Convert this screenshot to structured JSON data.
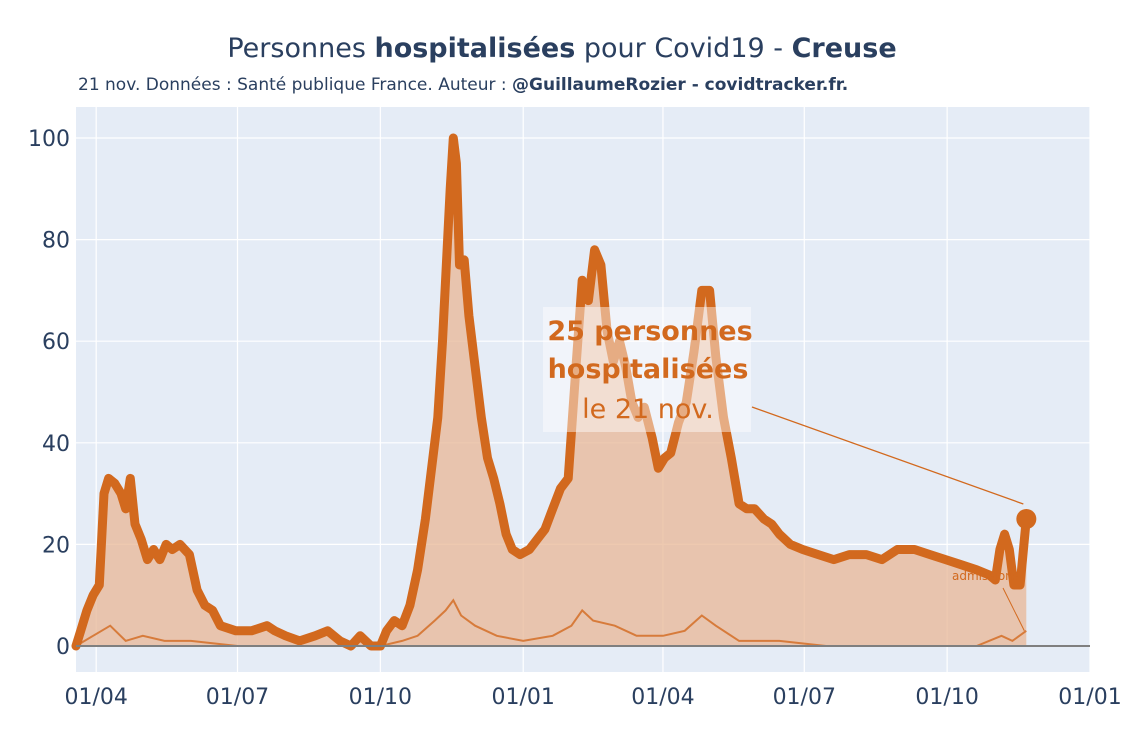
{
  "chart_data": {
    "type": "area",
    "title_prefix": "Personnes ",
    "title_bold1": "hospitalisées",
    "title_mid": " pour Covid19 - ",
    "title_bold2": "Creuse",
    "subtitle_prefix": "21 nov. Données : Santé publique France. Auteur : ",
    "subtitle_bold": "@GuillaumeRozier - covidtracker.fr.",
    "ylim": [
      0,
      100
    ],
    "y_ticks": [
      "0",
      "20",
      "40",
      "60",
      "80",
      "100"
    ],
    "x_ticks": [
      "01/04",
      "01/07",
      "01/10",
      "01/01",
      "01/04",
      "01/07",
      "01/10",
      "01/01"
    ],
    "x_tick_dates": [
      "2020-04-01",
      "2020-07-01",
      "2020-10-01",
      "2021-01-01",
      "2021-04-01",
      "2021-07-01",
      "2021-10-01",
      "2022-01-01"
    ],
    "x_range": [
      "2020-03-19",
      "2022-01-01"
    ],
    "grid": true,
    "colors": {
      "line": "#d2691e",
      "fill": "#e8b796",
      "plot_bg": "#e5ecf6",
      "grid": "#ffffff",
      "text": "#2a3f5f",
      "axis_zero": "#7f7f7f"
    },
    "series": [
      {
        "name": "hospitalisées",
        "points": [
          [
            "2020-03-19",
            0
          ],
          [
            "2020-03-22",
            3
          ],
          [
            "2020-03-26",
            7
          ],
          [
            "2020-03-30",
            10
          ],
          [
            "2020-04-03",
            12
          ],
          [
            "2020-04-06",
            30
          ],
          [
            "2020-04-09",
            33
          ],
          [
            "2020-04-13",
            32
          ],
          [
            "2020-04-17",
            30
          ],
          [
            "2020-04-20",
            27
          ],
          [
            "2020-04-23",
            33
          ],
          [
            "2020-04-26",
            24
          ],
          [
            "2020-04-30",
            21
          ],
          [
            "2020-05-04",
            17
          ],
          [
            "2020-05-08",
            19
          ],
          [
            "2020-05-12",
            17
          ],
          [
            "2020-05-16",
            20
          ],
          [
            "2020-05-20",
            19
          ],
          [
            "2020-05-25",
            20
          ],
          [
            "2020-05-31",
            18
          ],
          [
            "2020-06-05",
            11
          ],
          [
            "2020-06-10",
            8
          ],
          [
            "2020-06-15",
            7
          ],
          [
            "2020-06-20",
            4
          ],
          [
            "2020-06-30",
            3
          ],
          [
            "2020-07-10",
            3
          ],
          [
            "2020-07-20",
            4
          ],
          [
            "2020-07-25",
            3
          ],
          [
            "2020-08-01",
            2
          ],
          [
            "2020-08-10",
            1
          ],
          [
            "2020-08-20",
            2
          ],
          [
            "2020-08-28",
            3
          ],
          [
            "2020-09-05",
            1
          ],
          [
            "2020-09-12",
            0
          ],
          [
            "2020-09-18",
            2
          ],
          [
            "2020-09-25",
            0
          ],
          [
            "2020-10-01",
            0
          ],
          [
            "2020-10-05",
            3
          ],
          [
            "2020-10-10",
            5
          ],
          [
            "2020-10-15",
            4
          ],
          [
            "2020-10-20",
            8
          ],
          [
            "2020-10-25",
            15
          ],
          [
            "2020-10-30",
            25
          ],
          [
            "2020-11-03",
            35
          ],
          [
            "2020-11-07",
            45
          ],
          [
            "2020-11-10",
            60
          ],
          [
            "2020-11-13",
            78
          ],
          [
            "2020-11-15",
            90
          ],
          [
            "2020-11-17",
            100
          ],
          [
            "2020-11-19",
            95
          ],
          [
            "2020-11-21",
            75
          ],
          [
            "2020-11-24",
            76
          ],
          [
            "2020-11-27",
            65
          ],
          [
            "2020-12-01",
            55
          ],
          [
            "2020-12-05",
            45
          ],
          [
            "2020-12-09",
            37
          ],
          [
            "2020-12-13",
            33
          ],
          [
            "2020-12-17",
            28
          ],
          [
            "2020-12-21",
            22
          ],
          [
            "2020-12-25",
            19
          ],
          [
            "2020-12-30",
            18
          ],
          [
            "2021-01-05",
            19
          ],
          [
            "2021-01-10",
            21
          ],
          [
            "2021-01-15",
            23
          ],
          [
            "2021-01-20",
            27
          ],
          [
            "2021-01-25",
            31
          ],
          [
            "2021-01-30",
            33
          ],
          [
            "2021-02-04",
            55
          ],
          [
            "2021-02-08",
            72
          ],
          [
            "2021-02-12",
            68
          ],
          [
            "2021-02-16",
            78
          ],
          [
            "2021-02-20",
            75
          ],
          [
            "2021-02-24",
            62
          ],
          [
            "2021-02-28",
            56
          ],
          [
            "2021-03-04",
            60
          ],
          [
            "2021-03-08",
            55
          ],
          [
            "2021-03-12",
            48
          ],
          [
            "2021-03-16",
            45
          ],
          [
            "2021-03-20",
            47
          ],
          [
            "2021-03-25",
            41
          ],
          [
            "2021-03-29",
            35
          ],
          [
            "2021-04-02",
            37
          ],
          [
            "2021-04-06",
            38
          ],
          [
            "2021-04-11",
            44
          ],
          [
            "2021-04-16",
            48
          ],
          [
            "2021-04-21",
            58
          ],
          [
            "2021-04-26",
            70
          ],
          [
            "2021-05-01",
            70
          ],
          [
            "2021-05-05",
            57
          ],
          [
            "2021-05-10",
            45
          ],
          [
            "2021-05-15",
            37
          ],
          [
            "2021-05-20",
            28
          ],
          [
            "2021-05-25",
            27
          ],
          [
            "2021-05-30",
            27
          ],
          [
            "2021-06-05",
            25
          ],
          [
            "2021-06-10",
            24
          ],
          [
            "2021-06-15",
            22
          ],
          [
            "2021-06-22",
            20
          ],
          [
            "2021-06-30",
            19
          ],
          [
            "2021-07-10",
            18
          ],
          [
            "2021-07-20",
            17
          ],
          [
            "2021-07-30",
            18
          ],
          [
            "2021-08-10",
            18
          ],
          [
            "2021-08-20",
            17
          ],
          [
            "2021-08-30",
            19
          ],
          [
            "2021-09-10",
            19
          ],
          [
            "2021-09-20",
            18
          ],
          [
            "2021-09-30",
            17
          ],
          [
            "2021-10-10",
            16
          ],
          [
            "2021-10-20",
            15
          ],
          [
            "2021-10-28",
            14
          ],
          [
            "2021-11-01",
            13
          ],
          [
            "2021-11-04",
            19
          ],
          [
            "2021-11-07",
            22
          ],
          [
            "2021-11-10",
            19
          ],
          [
            "2021-11-13",
            12
          ],
          [
            "2021-11-17",
            12
          ],
          [
            "2021-11-21",
            25
          ]
        ]
      },
      {
        "name": "admissions",
        "points": [
          [
            "2020-03-19",
            0
          ],
          [
            "2020-03-30",
            2
          ],
          [
            "2020-04-10",
            4
          ],
          [
            "2020-04-20",
            1
          ],
          [
            "2020-05-01",
            2
          ],
          [
            "2020-05-15",
            1
          ],
          [
            "2020-06-01",
            1
          ],
          [
            "2020-07-01",
            0
          ],
          [
            "2020-09-01",
            0
          ],
          [
            "2020-10-01",
            0
          ],
          [
            "2020-10-15",
            1
          ],
          [
            "2020-10-25",
            2
          ],
          [
            "2020-11-05",
            5
          ],
          [
            "2020-11-12",
            7
          ],
          [
            "2020-11-17",
            9
          ],
          [
            "2020-11-22",
            6
          ],
          [
            "2020-12-01",
            4
          ],
          [
            "2020-12-15",
            2
          ],
          [
            "2021-01-01",
            1
          ],
          [
            "2021-01-20",
            2
          ],
          [
            "2021-02-01",
            4
          ],
          [
            "2021-02-08",
            7
          ],
          [
            "2021-02-15",
            5
          ],
          [
            "2021-03-01",
            4
          ],
          [
            "2021-03-15",
            2
          ],
          [
            "2021-04-01",
            2
          ],
          [
            "2021-04-15",
            3
          ],
          [
            "2021-04-26",
            6
          ],
          [
            "2021-05-05",
            4
          ],
          [
            "2021-05-20",
            1
          ],
          [
            "2021-06-15",
            1
          ],
          [
            "2021-07-15",
            0
          ],
          [
            "2021-09-01",
            0
          ],
          [
            "2021-10-20",
            0
          ],
          [
            "2021-11-05",
            2
          ],
          [
            "2021-11-12",
            1
          ],
          [
            "2021-11-21",
            3
          ]
        ]
      }
    ],
    "annotation": {
      "line1": "25 personnes",
      "line2": "hospitalisées",
      "line3": "le 21 nov.",
      "target_date": "2021-11-21",
      "target_value": 25,
      "small_label": "admissions"
    }
  }
}
